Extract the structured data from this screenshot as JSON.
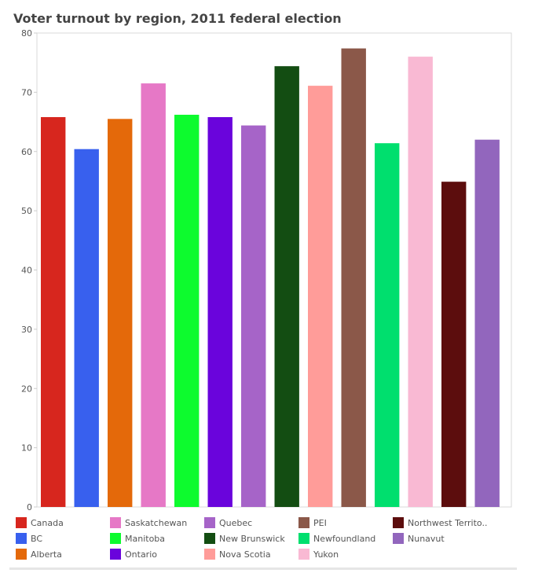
{
  "chart_data": {
    "type": "bar",
    "title": "Voter turnout by region, 2011 federal election",
    "xlabel": "",
    "ylabel": "",
    "ylim": [
      0,
      80
    ],
    "yticks": [
      0,
      10,
      20,
      30,
      40,
      50,
      60,
      70,
      80
    ],
    "grid": false,
    "legend_position": "bottom",
    "categories": [
      "Canada",
      "BC",
      "Alberta",
      "Saskatchewan",
      "Manitoba",
      "Ontario",
      "Quebec",
      "New Brunswick",
      "Nova Scotia",
      "PEI",
      "Newfoundland",
      "Yukon",
      "Northwest Territo..",
      "Nunavut"
    ],
    "values": [
      65.8,
      60.4,
      65.5,
      71.5,
      66.2,
      65.8,
      64.4,
      74.4,
      71.1,
      77.4,
      61.4,
      76.0,
      54.9,
      62.0
    ],
    "colors": [
      "#d7261e",
      "#3860ee",
      "#e4690a",
      "#e678c6",
      "#0dfb2e",
      "#6a04dc",
      "#a664c8",
      "#134d12",
      "#ff9c99",
      "#8b5849",
      "#00df6e",
      "#f9b9d3",
      "#5c0d0d",
      "#9266bd"
    ]
  }
}
